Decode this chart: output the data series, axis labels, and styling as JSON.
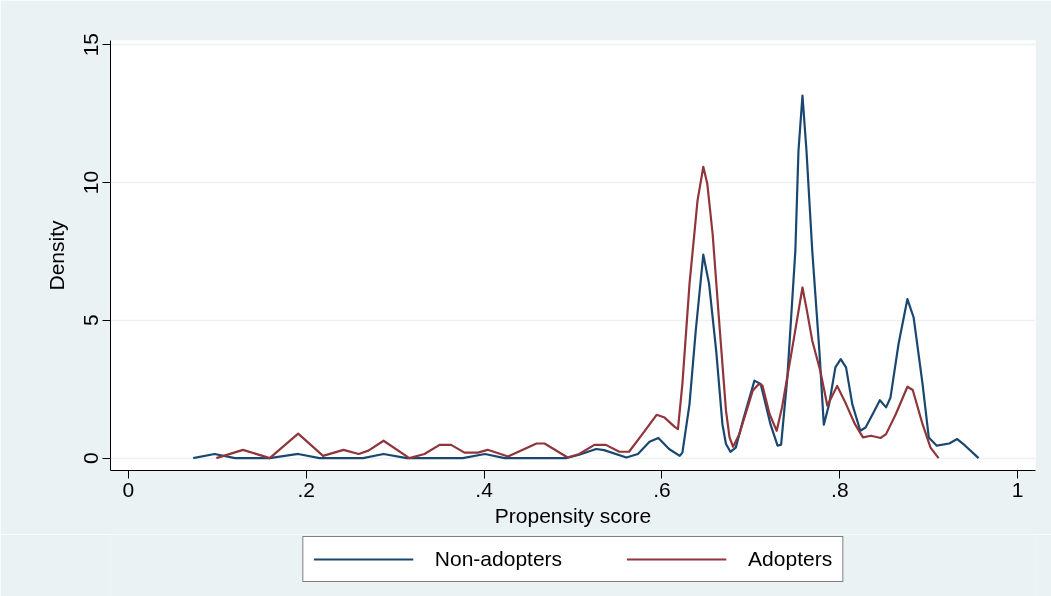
{
  "chart_data": {
    "type": "line",
    "xlabel": "Propensity score",
    "ylabel": "Density",
    "xlim": [
      -0.02,
      1.02
    ],
    "ylim": [
      -0.45,
      15.15
    ],
    "xticks": [
      0,
      {
        "value": 0.2,
        "label": ".2"
      },
      {
        "value": 0.4,
        "label": ".4"
      },
      {
        "value": 0.6,
        "label": ".6"
      },
      {
        "value": 0.8,
        "label": ".8"
      },
      1
    ],
    "yticks": [
      0,
      5,
      10,
      15
    ],
    "grid": "y",
    "legend": "bottom",
    "series": [
      {
        "name": "Non-adopters",
        "color": "#1a476f",
        "x": [
          0.073,
          0.097,
          0.12,
          0.159,
          0.191,
          0.215,
          0.264,
          0.287,
          0.313,
          0.376,
          0.401,
          0.423,
          0.492,
          0.507,
          0.526,
          0.535,
          0.56,
          0.573,
          0.586,
          0.596,
          0.608,
          0.62,
          0.623,
          0.631,
          0.638,
          0.6465,
          0.653,
          0.661,
          0.668,
          0.672,
          0.677,
          0.683,
          0.691,
          0.704,
          0.711,
          0.722,
          0.73,
          0.734,
          0.741,
          0.75,
          0.7535,
          0.758,
          0.7625,
          0.769,
          0.777,
          0.782,
          0.788,
          0.795,
          0.801,
          0.807,
          0.814,
          0.823,
          0.829,
          0.837,
          0.845,
          0.852,
          0.857,
          0.866,
          0.876,
          0.883,
          0.893,
          0.9,
          0.909,
          0.923,
          0.932,
          0.941,
          0.956
        ],
        "values": [
          0,
          0.15,
          0,
          0,
          0.15,
          0,
          0,
          0.15,
          0,
          0,
          0.15,
          0,
          0,
          0.12,
          0.33,
          0.29,
          0.02,
          0.15,
          0.59,
          0.73,
          0.33,
          0.08,
          0.2,
          1.96,
          4.62,
          7.38,
          6.32,
          3.89,
          1.23,
          0.51,
          0.23,
          0.38,
          1.35,
          2.81,
          2.69,
          1.23,
          0.45,
          0.49,
          2.93,
          7.52,
          11.15,
          13.15,
          11.15,
          7.52,
          3.89,
          1.21,
          1.96,
          3.29,
          3.59,
          3.29,
          1.96,
          0.99,
          1.11,
          1.6,
          2.1,
          1.84,
          2.2,
          4.14,
          5.77,
          5.1,
          2.69,
          0.75,
          0.45,
          0.53,
          0.69,
          0.45,
          0
        ]
      },
      {
        "name": "Adopters",
        "color": "#90353b",
        "x": [
          0.099,
          0.129,
          0.159,
          0.191,
          0.219,
          0.242,
          0.259,
          0.27,
          0.287,
          0.316,
          0.333,
          0.35,
          0.363,
          0.378,
          0.393,
          0.404,
          0.427,
          0.459,
          0.468,
          0.494,
          0.507,
          0.524,
          0.537,
          0.552,
          0.563,
          0.578,
          0.594,
          0.603,
          0.614,
          0.618,
          0.623,
          0.631,
          0.64,
          0.6465,
          0.651,
          0.657,
          0.664,
          0.672,
          0.676,
          0.68,
          0.687,
          0.702,
          0.709,
          0.713,
          0.721,
          0.729,
          0.735,
          0.746,
          0.758,
          0.763,
          0.769,
          0.778,
          0.786,
          0.797,
          0.807,
          0.817,
          0.826,
          0.835,
          0.846,
          0.852,
          0.863,
          0.876,
          0.882,
          0.893,
          0.902,
          0.911
        ],
        "values": [
          0,
          0.3,
          0,
          0.89,
          0.08,
          0.3,
          0.15,
          0.27,
          0.63,
          0,
          0.15,
          0.48,
          0.48,
          0.2,
          0.2,
          0.3,
          0.06,
          0.53,
          0.53,
          0.02,
          0.15,
          0.48,
          0.48,
          0.23,
          0.23,
          0.87,
          1.57,
          1.47,
          1.14,
          1.05,
          2.69,
          6.32,
          9.34,
          10.57,
          9.95,
          8.13,
          5.1,
          1.72,
          0.75,
          0.41,
          0.87,
          2.44,
          2.69,
          2.63,
          1.6,
          0.99,
          1.84,
          3.89,
          6.19,
          5.35,
          4.26,
          3.17,
          1.9,
          2.62,
          1.96,
          1.23,
          0.75,
          0.81,
          0.73,
          0.87,
          1.6,
          2.59,
          2.47,
          1.23,
          0.38,
          0
        ]
      }
    ]
  }
}
